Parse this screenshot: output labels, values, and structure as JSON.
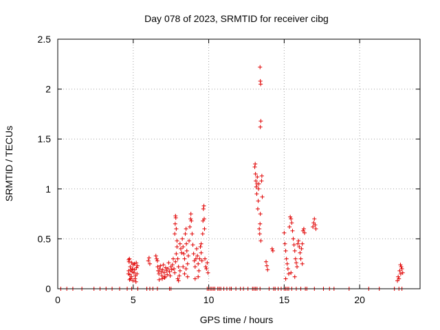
{
  "chart_data": {
    "type": "scatter",
    "title": "Day 078 of 2023, SRMTID for receiver cibg",
    "xlabel": "GPS time / hours",
    "ylabel": "SRMTID / TECUs",
    "xlim": [
      0,
      24
    ],
    "ylim": [
      0,
      2.5
    ],
    "x_ticks": [
      0,
      5,
      10,
      15,
      20
    ],
    "x_tick_labels": [
      "0",
      "5",
      "10",
      "15",
      "20"
    ],
    "y_ticks": [
      0,
      0.5,
      1,
      1.5,
      2,
      2.5
    ],
    "y_tick_labels": [
      "0",
      "0.5",
      "1",
      "1.5",
      "2",
      "2.5"
    ],
    "grid": true,
    "marker": "+",
    "color": "#e00000",
    "series": [
      {
        "name": "SRMTID",
        "points": [
          [
            0.2,
            0
          ],
          [
            0.6,
            0
          ],
          [
            1.0,
            0
          ],
          [
            1.6,
            0
          ],
          [
            2.4,
            0
          ],
          [
            2.8,
            0
          ],
          [
            3.2,
            0
          ],
          [
            3.6,
            0
          ],
          [
            4.1,
            0
          ],
          [
            4.6,
            0
          ],
          [
            4.9,
            0
          ],
          [
            5.3,
            0
          ],
          [
            5.9,
            0
          ],
          [
            6.1,
            0
          ],
          [
            6.3,
            0
          ],
          [
            6.6,
            0
          ],
          [
            7.4,
            0
          ],
          [
            7.5,
            0
          ],
          [
            9.9,
            0
          ],
          [
            10.0,
            0
          ],
          [
            10.1,
            0
          ],
          [
            10.2,
            0
          ],
          [
            10.3,
            0
          ],
          [
            10.4,
            0
          ],
          [
            10.6,
            0
          ],
          [
            10.7,
            0
          ],
          [
            10.8,
            0
          ],
          [
            11.0,
            0
          ],
          [
            11.2,
            0
          ],
          [
            11.4,
            0
          ],
          [
            11.5,
            0
          ],
          [
            11.8,
            0
          ],
          [
            12.1,
            0
          ],
          [
            12.3,
            0
          ],
          [
            12.6,
            0
          ],
          [
            12.9,
            0
          ],
          [
            13.0,
            0
          ],
          [
            13.1,
            0
          ],
          [
            13.2,
            0
          ],
          [
            13.4,
            0
          ],
          [
            14.0,
            0
          ],
          [
            14.3,
            0
          ],
          [
            14.4,
            0
          ],
          [
            14.6,
            0
          ],
          [
            14.8,
            0
          ],
          [
            15.0,
            0
          ],
          [
            15.1,
            0
          ],
          [
            15.2,
            0
          ],
          [
            15.3,
            0
          ],
          [
            15.5,
            0
          ],
          [
            15.8,
            0
          ],
          [
            16.1,
            0
          ],
          [
            16.4,
            0
          ],
          [
            16.5,
            0
          ],
          [
            17.0,
            0
          ],
          [
            17.6,
            0
          ],
          [
            18.0,
            0
          ],
          [
            18.3,
            0
          ],
          [
            19.3,
            0
          ],
          [
            20.6,
            0
          ],
          [
            21.3,
            0
          ],
          [
            22.3,
            0
          ],
          [
            22.6,
            0
          ],
          [
            22.8,
            0
          ],
          [
            4.7,
            0.29
          ],
          [
            4.72,
            0.27
          ],
          [
            4.75,
            0.3
          ],
          [
            4.8,
            0.22
          ],
          [
            4.85,
            0.19
          ],
          [
            4.9,
            0.26
          ],
          [
            4.78,
            0.14
          ],
          [
            4.82,
            0.1
          ],
          [
            4.88,
            0.12
          ],
          [
            4.95,
            0.2
          ],
          [
            5.0,
            0.24
          ],
          [
            5.05,
            0.16
          ],
          [
            5.1,
            0.19
          ],
          [
            5.15,
            0.13
          ],
          [
            5.2,
            0.26
          ],
          [
            5.22,
            0.21
          ],
          [
            5.25,
            0.15
          ],
          [
            5.28,
            0.23
          ],
          [
            4.7,
            0.18
          ],
          [
            4.68,
            0.15
          ],
          [
            4.76,
            0.09
          ],
          [
            4.98,
            0.08
          ],
          [
            5.12,
            0.1
          ],
          [
            5.18,
            0.07
          ],
          [
            4.92,
            0.17
          ],
          [
            5.08,
            0.25
          ],
          [
            6.0,
            0.28
          ],
          [
            6.05,
            0.31
          ],
          [
            6.1,
            0.25
          ],
          [
            6.5,
            0.33
          ],
          [
            6.55,
            0.3
          ],
          [
            6.6,
            0.28
          ],
          [
            6.62,
            0.22
          ],
          [
            6.65,
            0.18
          ],
          [
            6.7,
            0.15
          ],
          [
            6.75,
            0.2
          ],
          [
            6.8,
            0.23
          ],
          [
            6.85,
            0.17
          ],
          [
            6.9,
            0.13
          ],
          [
            6.95,
            0.19
          ],
          [
            7.0,
            0.24
          ],
          [
            7.05,
            0.16
          ],
          [
            7.1,
            0.12
          ],
          [
            7.15,
            0.21
          ],
          [
            7.2,
            0.18
          ],
          [
            7.25,
            0.14
          ],
          [
            7.3,
            0.2
          ],
          [
            7.35,
            0.26
          ],
          [
            7.4,
            0.17
          ],
          [
            7.45,
            0.13
          ],
          [
            7.5,
            0.22
          ],
          [
            6.72,
            0.09
          ],
          [
            6.92,
            0.1
          ],
          [
            7.08,
            0.11
          ],
          [
            7.55,
            0.19
          ],
          [
            7.6,
            0.24
          ],
          [
            7.65,
            0.3
          ],
          [
            7.7,
            0.2
          ],
          [
            7.75,
            0.16
          ],
          [
            7.8,
            0.27
          ],
          [
            7.85,
            0.35
          ],
          [
            7.9,
            0.42
          ],
          [
            7.95,
            0.3
          ],
          [
            8.0,
            0.22
          ],
          [
            7.75,
            0.55
          ],
          [
            7.78,
            0.65
          ],
          [
            7.8,
            0.73
          ],
          [
            7.82,
            0.71
          ],
          [
            7.85,
            0.6
          ],
          [
            7.9,
            0.48
          ],
          [
            7.95,
            0.1
          ],
          [
            8.0,
            0.08
          ],
          [
            8.05,
            0.13
          ],
          [
            8.1,
            0.18
          ],
          [
            8.1,
            0.45
          ],
          [
            8.15,
            0.4
          ],
          [
            8.2,
            0.36
          ],
          [
            8.25,
            0.5
          ],
          [
            8.3,
            0.42
          ],
          [
            8.35,
            0.35
          ],
          [
            8.4,
            0.3
          ],
          [
            8.45,
            0.55
          ],
          [
            8.5,
            0.6
          ],
          [
            8.52,
            0.45
          ],
          [
            8.55,
            0.38
          ],
          [
            8.6,
            0.25
          ],
          [
            8.65,
            0.33
          ],
          [
            8.7,
            0.48
          ],
          [
            8.75,
            0.62
          ],
          [
            8.8,
            0.7
          ],
          [
            8.82,
            0.75
          ],
          [
            8.85,
            0.68
          ],
          [
            8.9,
            0.55
          ],
          [
            8.95,
            0.44
          ],
          [
            8.3,
            0.22
          ],
          [
            8.4,
            0.15
          ],
          [
            8.5,
            0.2
          ],
          [
            8.6,
            0.12
          ],
          [
            9.0,
            0.35
          ],
          [
            9.05,
            0.28
          ],
          [
            9.1,
            0.22
          ],
          [
            9.15,
            0.3
          ],
          [
            9.2,
            0.4
          ],
          [
            9.25,
            0.33
          ],
          [
            9.3,
            0.25
          ],
          [
            9.35,
            0.18
          ],
          [
            9.4,
            0.3
          ],
          [
            9.45,
            0.42
          ],
          [
            9.5,
            0.36
          ],
          [
            9.55,
            0.28
          ],
          [
            9.6,
            0.55
          ],
          [
            9.62,
            0.68
          ],
          [
            9.65,
            0.8
          ],
          [
            9.68,
            0.83
          ],
          [
            9.7,
            0.7
          ],
          [
            9.72,
            0.6
          ],
          [
            9.75,
            0.3
          ],
          [
            9.8,
            0.22
          ],
          [
            9.85,
            0.2
          ],
          [
            9.9,
            0.26
          ],
          [
            9.95,
            0.16
          ],
          [
            9.1,
            0.1
          ],
          [
            9.3,
            0.12
          ],
          [
            9.5,
            0.45
          ],
          [
            13.05,
            1.22
          ],
          [
            13.08,
            1.25
          ],
          [
            13.1,
            1.15
          ],
          [
            13.12,
            1.08
          ],
          [
            13.15,
            1.02
          ],
          [
            13.18,
            0.95
          ],
          [
            13.2,
            1.05
          ],
          [
            13.22,
            1.12
          ],
          [
            13.25,
            0.8
          ],
          [
            13.28,
            0.88
          ],
          [
            13.3,
            1.0
          ],
          [
            13.32,
            1.05
          ],
          [
            13.35,
            0.6
          ],
          [
            13.38,
            0.55
          ],
          [
            13.4,
            0.65
          ],
          [
            13.42,
            0.75
          ],
          [
            13.45,
            0.48
          ],
          [
            13.4,
            2.22
          ],
          [
            13.42,
            2.08
          ],
          [
            13.44,
            2.05
          ],
          [
            13.45,
            1.68
          ],
          [
            13.42,
            1.62
          ],
          [
            13.5,
            1.08
          ],
          [
            13.52,
            1.13
          ],
          [
            13.55,
            0.92
          ],
          [
            13.8,
            0.27
          ],
          [
            13.85,
            0.23
          ],
          [
            13.9,
            0.19
          ],
          [
            14.2,
            0.4
          ],
          [
            14.25,
            0.38
          ],
          [
            15.0,
            0.56
          ],
          [
            15.05,
            0.45
          ],
          [
            15.1,
            0.38
          ],
          [
            15.15,
            0.3
          ],
          [
            15.2,
            0.25
          ],
          [
            15.25,
            0.2
          ],
          [
            15.3,
            0.15
          ],
          [
            15.1,
            0.1
          ],
          [
            15.35,
            0.62
          ],
          [
            15.4,
            0.72
          ],
          [
            15.45,
            0.7
          ],
          [
            15.5,
            0.66
          ],
          [
            15.55,
            0.58
          ],
          [
            15.6,
            0.5
          ],
          [
            15.65,
            0.44
          ],
          [
            15.7,
            0.38
          ],
          [
            15.75,
            0.3
          ],
          [
            15.8,
            0.26
          ],
          [
            15.85,
            0.22
          ],
          [
            15.9,
            0.45
          ],
          [
            15.95,
            0.48
          ],
          [
            16.0,
            0.42
          ],
          [
            16.05,
            0.36
          ],
          [
            16.1,
            0.3
          ],
          [
            16.15,
            0.4
          ],
          [
            16.2,
            0.45
          ],
          [
            16.25,
            0.58
          ],
          [
            16.3,
            0.6
          ],
          [
            16.35,
            0.56
          ],
          [
            16.2,
            0.25
          ],
          [
            15.45,
            0.16
          ],
          [
            15.7,
            0.12
          ],
          [
            16.9,
            0.62
          ],
          [
            16.95,
            0.66
          ],
          [
            17.0,
            0.7
          ],
          [
            17.05,
            0.64
          ],
          [
            17.1,
            0.6
          ],
          [
            22.5,
            0.08
          ],
          [
            22.55,
            0.12
          ],
          [
            22.6,
            0.1
          ],
          [
            22.65,
            0.18
          ],
          [
            22.7,
            0.24
          ],
          [
            22.75,
            0.22
          ],
          [
            22.8,
            0.2
          ],
          [
            22.85,
            0.16
          ],
          [
            22.72,
            0.15
          ]
        ]
      }
    ]
  }
}
